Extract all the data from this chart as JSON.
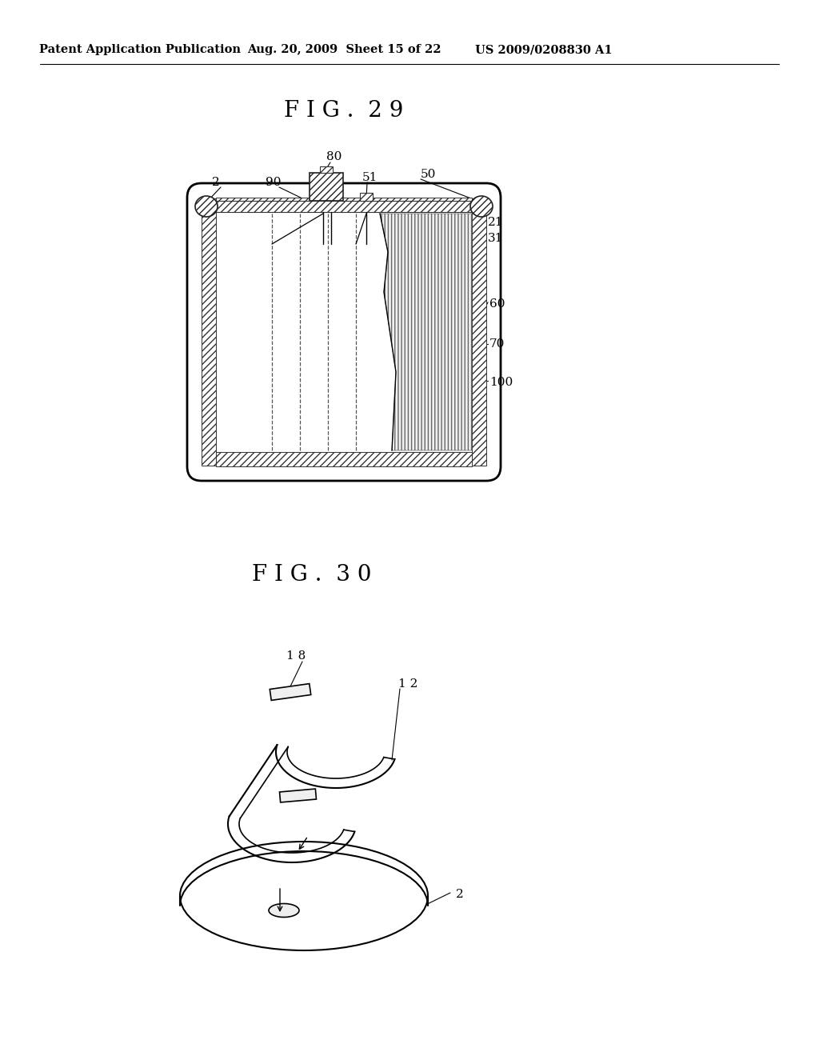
{
  "background_color": "#ffffff",
  "page_width": 10.24,
  "page_height": 13.2,
  "header_text1": "Patent Application Publication",
  "header_text2": "Aug. 20, 2009  Sheet 15 of 22",
  "header_text3": "US 2009/0208830 A1",
  "fig29_title": "F I G .  2 9",
  "fig30_title": "F I G .  3 0",
  "text_color": "#000000",
  "line_color": "#000000"
}
